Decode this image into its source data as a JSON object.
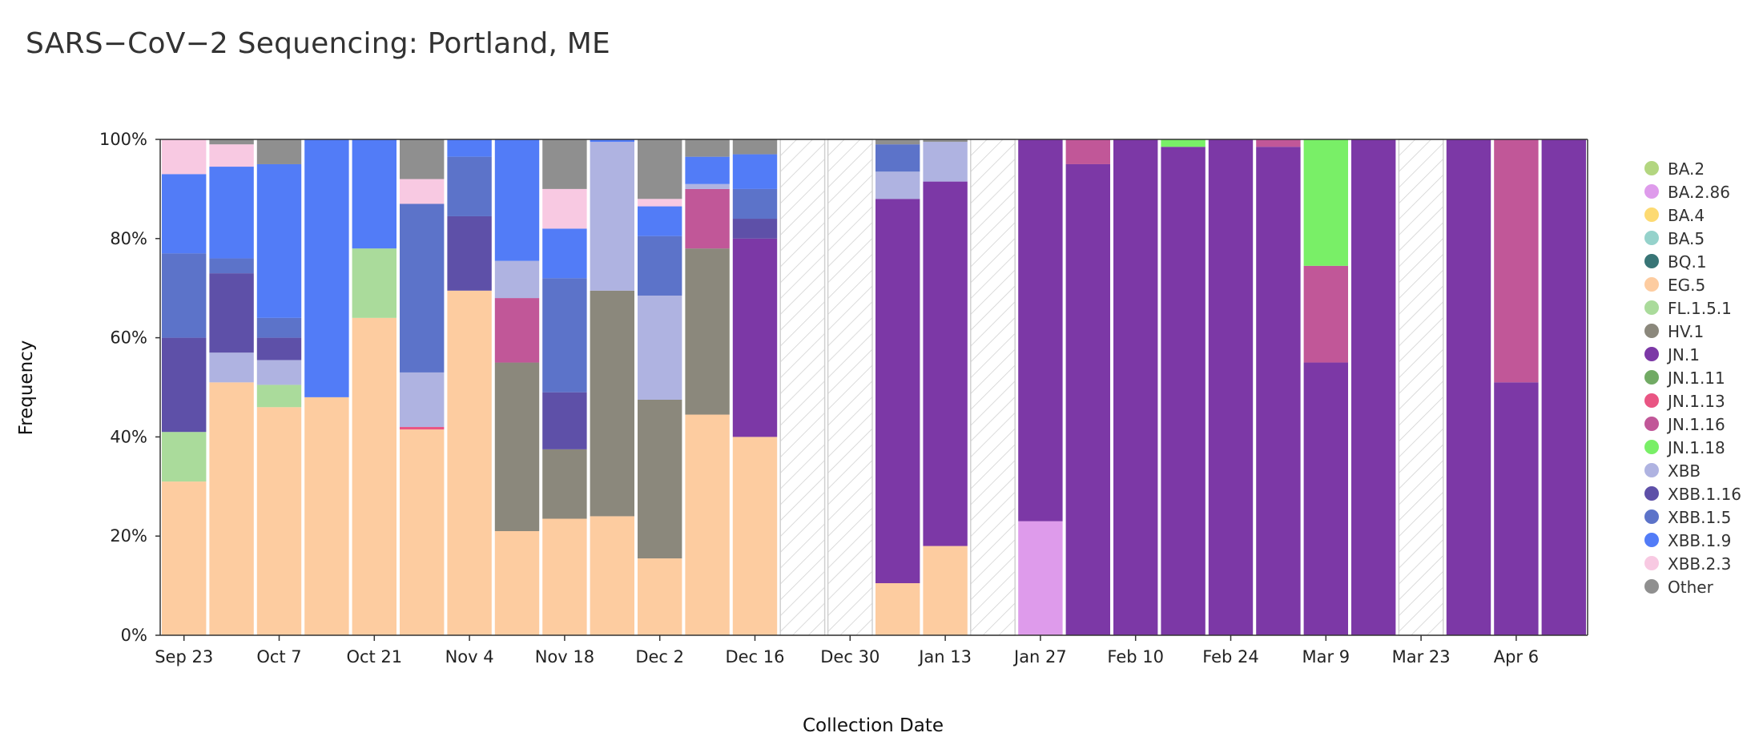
{
  "title": "SARS−CoV−2 Sequencing: Portland, ME",
  "chart_data": {
    "type": "bar",
    "stacked": true,
    "title": "SARS−CoV−2 Sequencing: Portland, ME",
    "xlabel": "Collection Date",
    "ylabel": "Frequency",
    "ylim": [
      0,
      1
    ],
    "yticks": [
      "0%",
      "20%",
      "40%",
      "60%",
      "80%",
      "100%"
    ],
    "xticks": [
      {
        "index": 0,
        "label": "Sep 23"
      },
      {
        "index": 2,
        "label": "Oct 7"
      },
      {
        "index": 4,
        "label": "Oct 21"
      },
      {
        "index": 6,
        "label": "Nov 4"
      },
      {
        "index": 8,
        "label": "Nov 18"
      },
      {
        "index": 10,
        "label": "Dec 2"
      },
      {
        "index": 12,
        "label": "Dec 16"
      },
      {
        "index": 14,
        "label": "Dec 30"
      },
      {
        "index": 16,
        "label": "Jan 13"
      },
      {
        "index": 18,
        "label": "Jan 27"
      },
      {
        "index": 20,
        "label": "Feb 10"
      },
      {
        "index": 22,
        "label": "Feb 24"
      },
      {
        "index": 24,
        "label": "Mar 9"
      },
      {
        "index": 26,
        "label": "Mar 23"
      },
      {
        "index": 28,
        "label": "Apr 6"
      }
    ],
    "legend_position": "right",
    "legend": [
      {
        "name": "BA.2",
        "color": "#a8d06e"
      },
      {
        "name": "BA.2.86",
        "color": "#d98de8"
      },
      {
        "name": "BA.4",
        "color": "#fdd55e"
      },
      {
        "name": "BA.5",
        "color": "#86ccc4"
      },
      {
        "name": "BQ.1",
        "color": "#1d6263"
      },
      {
        "name": "EG.5",
        "color": "#fdc593"
      },
      {
        "name": "FL.1.5.1",
        "color": "#9ed68d"
      },
      {
        "name": "HV.1",
        "color": "#7b786a"
      },
      {
        "name": "JN.1",
        "color": "#6a1d9a"
      },
      {
        "name": "JN.1.11",
        "color": "#5d9e4e"
      },
      {
        "name": "JN.1.13",
        "color": "#e63d72"
      },
      {
        "name": "JN.1.16",
        "color": "#b8408a"
      },
      {
        "name": "JN.1.18",
        "color": "#66ed52"
      },
      {
        "name": "XBB",
        "color": "#a4a9dd"
      },
      {
        "name": "XBB.1.16",
        "color": "#48389c"
      },
      {
        "name": "XBB.1.5",
        "color": "#4660c1"
      },
      {
        "name": "XBB.1.9",
        "color": "#3a6af6"
      },
      {
        "name": "XBB.2.3",
        "color": "#f7c1de"
      },
      {
        "name": "Other",
        "color": "#7f7f7f"
      }
    ],
    "weeks": [
      {
        "segments": [
          {
            "v": "EG.5",
            "f": 0.31
          },
          {
            "v": "FL.1.5.1",
            "f": 0.1
          },
          {
            "v": "XBB.1.16",
            "f": 0.19
          },
          {
            "v": "XBB.1.5",
            "f": 0.17
          },
          {
            "v": "XBB.1.9",
            "f": 0.16
          },
          {
            "v": "XBB.2.3",
            "f": 0.07
          }
        ]
      },
      {
        "segments": [
          {
            "v": "EG.5",
            "f": 0.51
          },
          {
            "v": "XBB",
            "f": 0.06
          },
          {
            "v": "XBB.1.16",
            "f": 0.16
          },
          {
            "v": "XBB.1.5",
            "f": 0.03
          },
          {
            "v": "XBB.1.9",
            "f": 0.185
          },
          {
            "v": "XBB.2.3",
            "f": 0.045
          },
          {
            "v": "Other",
            "f": 0.01
          }
        ]
      },
      {
        "segments": [
          {
            "v": "EG.5",
            "f": 0.46
          },
          {
            "v": "FL.1.5.1",
            "f": 0.045
          },
          {
            "v": "XBB",
            "f": 0.05
          },
          {
            "v": "XBB.1.16",
            "f": 0.045
          },
          {
            "v": "XBB.1.5",
            "f": 0.04
          },
          {
            "v": "XBB.1.9",
            "f": 0.31
          },
          {
            "v": "Other",
            "f": 0.05
          }
        ]
      },
      {
        "segments": [
          {
            "v": "EG.5",
            "f": 0.48
          },
          {
            "v": "XBB.1.9",
            "f": 0.52
          }
        ]
      },
      {
        "segments": [
          {
            "v": "EG.5",
            "f": 0.64
          },
          {
            "v": "FL.1.5.1",
            "f": 0.14
          },
          {
            "v": "XBB.1.9",
            "f": 0.22
          }
        ]
      },
      {
        "segments": [
          {
            "v": "EG.5",
            "f": 0.415
          },
          {
            "v": "JN.1.13",
            "f": 0.005
          },
          {
            "v": "XBB",
            "f": 0.11
          },
          {
            "v": "XBB.1.5",
            "f": 0.34
          },
          {
            "v": "XBB.2.3",
            "f": 0.05
          },
          {
            "v": "Other",
            "f": 0.08
          }
        ]
      },
      {
        "segments": [
          {
            "v": "EG.5",
            "f": 0.695
          },
          {
            "v": "XBB.1.16",
            "f": 0.15
          },
          {
            "v": "XBB.1.5",
            "f": 0.12
          },
          {
            "v": "XBB.1.9",
            "f": 0.035
          }
        ]
      },
      {
        "segments": [
          {
            "v": "EG.5",
            "f": 0.21
          },
          {
            "v": "HV.1",
            "f": 0.34
          },
          {
            "v": "JN.1.16",
            "f": 0.13
          },
          {
            "v": "XBB",
            "f": 0.075
          },
          {
            "v": "XBB.1.9",
            "f": 0.245
          }
        ]
      },
      {
        "segments": [
          {
            "v": "EG.5",
            "f": 0.235
          },
          {
            "v": "HV.1",
            "f": 0.14
          },
          {
            "v": "XBB.1.16",
            "f": 0.115
          },
          {
            "v": "XBB.1.5",
            "f": 0.23
          },
          {
            "v": "XBB.1.9",
            "f": 0.1
          },
          {
            "v": "XBB.2.3",
            "f": 0.08
          },
          {
            "v": "Other",
            "f": 0.1
          }
        ]
      },
      {
        "segments": [
          {
            "v": "EG.5",
            "f": 0.24
          },
          {
            "v": "HV.1",
            "f": 0.455
          },
          {
            "v": "XBB",
            "f": 0.3
          },
          {
            "v": "XBB.1.9",
            "f": 0.005
          }
        ]
      },
      {
        "segments": [
          {
            "v": "EG.5",
            "f": 0.155
          },
          {
            "v": "HV.1",
            "f": 0.32
          },
          {
            "v": "XBB",
            "f": 0.21
          },
          {
            "v": "XBB.1.5",
            "f": 0.12
          },
          {
            "v": "XBB.1.9",
            "f": 0.06
          },
          {
            "v": "XBB.2.3",
            "f": 0.015
          },
          {
            "v": "Other",
            "f": 0.12
          }
        ]
      },
      {
        "segments": [
          {
            "v": "EG.5",
            "f": 0.445
          },
          {
            "v": "HV.1",
            "f": 0.335
          },
          {
            "v": "JN.1.16",
            "f": 0.12
          },
          {
            "v": "XBB",
            "f": 0.01
          },
          {
            "v": "XBB.1.9",
            "f": 0.055
          },
          {
            "v": "Other",
            "f": 0.035
          }
        ]
      },
      {
        "segments": [
          {
            "v": "EG.5",
            "f": 0.4
          },
          {
            "v": "JN.1",
            "f": 0.4
          },
          {
            "v": "XBB.1.16",
            "f": 0.04
          },
          {
            "v": "XBB.1.5",
            "f": 0.06
          },
          {
            "v": "XBB.1.9",
            "f": 0.07
          },
          {
            "v": "Other",
            "f": 0.03
          }
        ]
      },
      {
        "segments": []
      },
      {
        "segments": []
      },
      {
        "segments": [
          {
            "v": "EG.5",
            "f": 0.105
          },
          {
            "v": "JN.1",
            "f": 0.775
          },
          {
            "v": "XBB",
            "f": 0.055
          },
          {
            "v": "XBB.1.5",
            "f": 0.055
          },
          {
            "v": "Other",
            "f": 0.01
          }
        ]
      },
      {
        "segments": [
          {
            "v": "EG.5",
            "f": 0.18
          },
          {
            "v": "JN.1",
            "f": 0.735
          },
          {
            "v": "XBB",
            "f": 0.08
          },
          {
            "v": "Other",
            "f": 0.005
          }
        ]
      },
      {
        "segments": []
      },
      {
        "segments": [
          {
            "v": "BA.2.86",
            "f": 0.23
          },
          {
            "v": "JN.1",
            "f": 0.77
          }
        ]
      },
      {
        "segments": [
          {
            "v": "JN.1",
            "f": 0.95
          },
          {
            "v": "JN.1.16",
            "f": 0.05
          }
        ]
      },
      {
        "segments": [
          {
            "v": "JN.1",
            "f": 1.0
          }
        ]
      },
      {
        "segments": [
          {
            "v": "JN.1",
            "f": 0.985
          },
          {
            "v": "JN.1.18",
            "f": 0.015
          }
        ]
      },
      {
        "segments": [
          {
            "v": "JN.1",
            "f": 1.0
          }
        ]
      },
      {
        "segments": [
          {
            "v": "JN.1",
            "f": 0.985
          },
          {
            "v": "JN.1.16",
            "f": 0.015
          }
        ]
      },
      {
        "segments": [
          {
            "v": "JN.1",
            "f": 0.55
          },
          {
            "v": "JN.1.16",
            "f": 0.195
          },
          {
            "v": "JN.1.18",
            "f": 0.255
          }
        ]
      },
      {
        "segments": [
          {
            "v": "JN.1",
            "f": 1.0
          }
        ]
      },
      {
        "segments": []
      },
      {
        "segments": [
          {
            "v": "JN.1",
            "f": 1.0
          }
        ]
      },
      {
        "segments": [
          {
            "v": "JN.1",
            "f": 0.51
          },
          {
            "v": "JN.1.16",
            "f": 0.49
          }
        ]
      },
      {
        "segments": [
          {
            "v": "JN.1",
            "f": 1.0
          }
        ]
      }
    ]
  }
}
